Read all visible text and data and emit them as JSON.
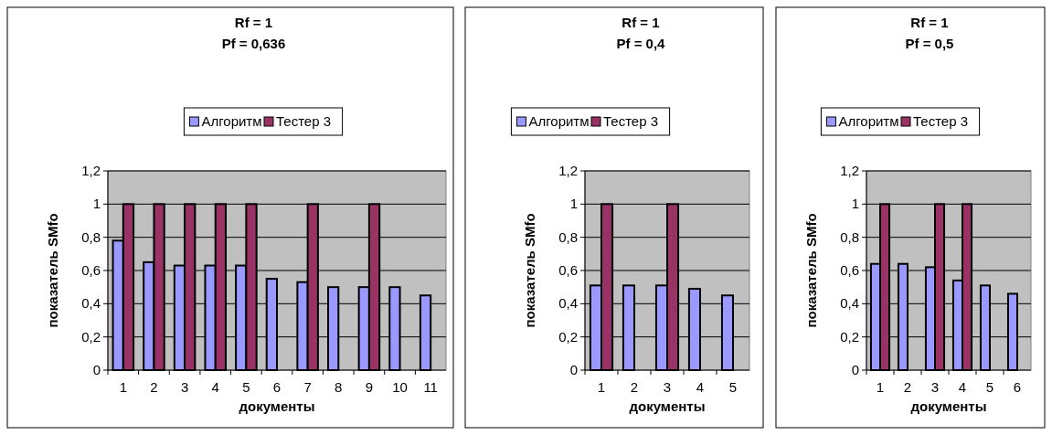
{
  "chart_data": [
    {
      "type": "bar",
      "title": "Rf = 1\nPf = 0,636",
      "xlabel": "документы",
      "ylabel": "показатель SMfo",
      "categories": [
        "1",
        "2",
        "3",
        "4",
        "5",
        "6",
        "7",
        "8",
        "9",
        "10",
        "11"
      ],
      "series": [
        {
          "name": "Алгоритм",
          "color": "#9999ff",
          "values": [
            0.78,
            0.65,
            0.63,
            0.63,
            0.63,
            0.55,
            0.53,
            0.5,
            0.5,
            0.5,
            0.45
          ]
        },
        {
          "name": "Тестер 3",
          "color": "#993366",
          "values": [
            1,
            1,
            1,
            1,
            1,
            null,
            1,
            null,
            1,
            null,
            null
          ]
        }
      ],
      "ylim": [
        0,
        1.2
      ],
      "yticks": [
        {
          "value": 0,
          "label": "0"
        },
        {
          "value": 0.2,
          "label": "0,2"
        },
        {
          "value": 0.4,
          "label": "0,4"
        },
        {
          "value": 0.6,
          "label": "0,6"
        },
        {
          "value": 0.8,
          "label": "0,8"
        },
        {
          "value": 1,
          "label": "1"
        },
        {
          "value": 1.2,
          "label": "1,2"
        }
      ],
      "grid": "y",
      "legend": "top"
    },
    {
      "type": "bar",
      "title": "Rf = 1\nPf = 0,4",
      "xlabel": "документы",
      "ylabel": "показатель SMfo",
      "categories": [
        "1",
        "2",
        "3",
        "4",
        "5"
      ],
      "series": [
        {
          "name": "Алгоритм",
          "color": "#9999ff",
          "values": [
            0.51,
            0.51,
            0.51,
            0.49,
            0.45
          ]
        },
        {
          "name": "Тестер 3",
          "color": "#993366",
          "values": [
            1,
            null,
            1,
            null,
            null
          ]
        }
      ],
      "ylim": [
        0,
        1.2
      ],
      "yticks": [
        {
          "value": 0,
          "label": "0"
        },
        {
          "value": 0.2,
          "label": "0,2"
        },
        {
          "value": 0.4,
          "label": "0,4"
        },
        {
          "value": 0.6,
          "label": "0,6"
        },
        {
          "value": 0.8,
          "label": "0,8"
        },
        {
          "value": 1,
          "label": "1"
        },
        {
          "value": 1.2,
          "label": "1,2"
        }
      ],
      "grid": "y",
      "legend": "top"
    },
    {
      "type": "bar",
      "title": "Rf = 1\nPf = 0,5",
      "xlabel": "документы",
      "ylabel": "показатель SMfo",
      "categories": [
        "1",
        "2",
        "3",
        "4",
        "5",
        "6"
      ],
      "series": [
        {
          "name": "Алгоритм",
          "color": "#9999ff",
          "values": [
            0.64,
            0.64,
            0.62,
            0.54,
            0.51,
            0.46
          ]
        },
        {
          "name": "Тестер 3",
          "color": "#993366",
          "values": [
            1,
            null,
            1,
            1,
            null,
            null
          ]
        }
      ],
      "ylim": [
        0,
        1.2
      ],
      "yticks": [
        {
          "value": 0,
          "label": "0"
        },
        {
          "value": 0.2,
          "label": "0,2"
        },
        {
          "value": 0.4,
          "label": "0,4"
        },
        {
          "value": 0.6,
          "label": "0,6"
        },
        {
          "value": 0.8,
          "label": "0,8"
        },
        {
          "value": 1,
          "label": "1"
        },
        {
          "value": 1.2,
          "label": "1,2"
        }
      ],
      "grid": "y",
      "legend": "top"
    }
  ]
}
